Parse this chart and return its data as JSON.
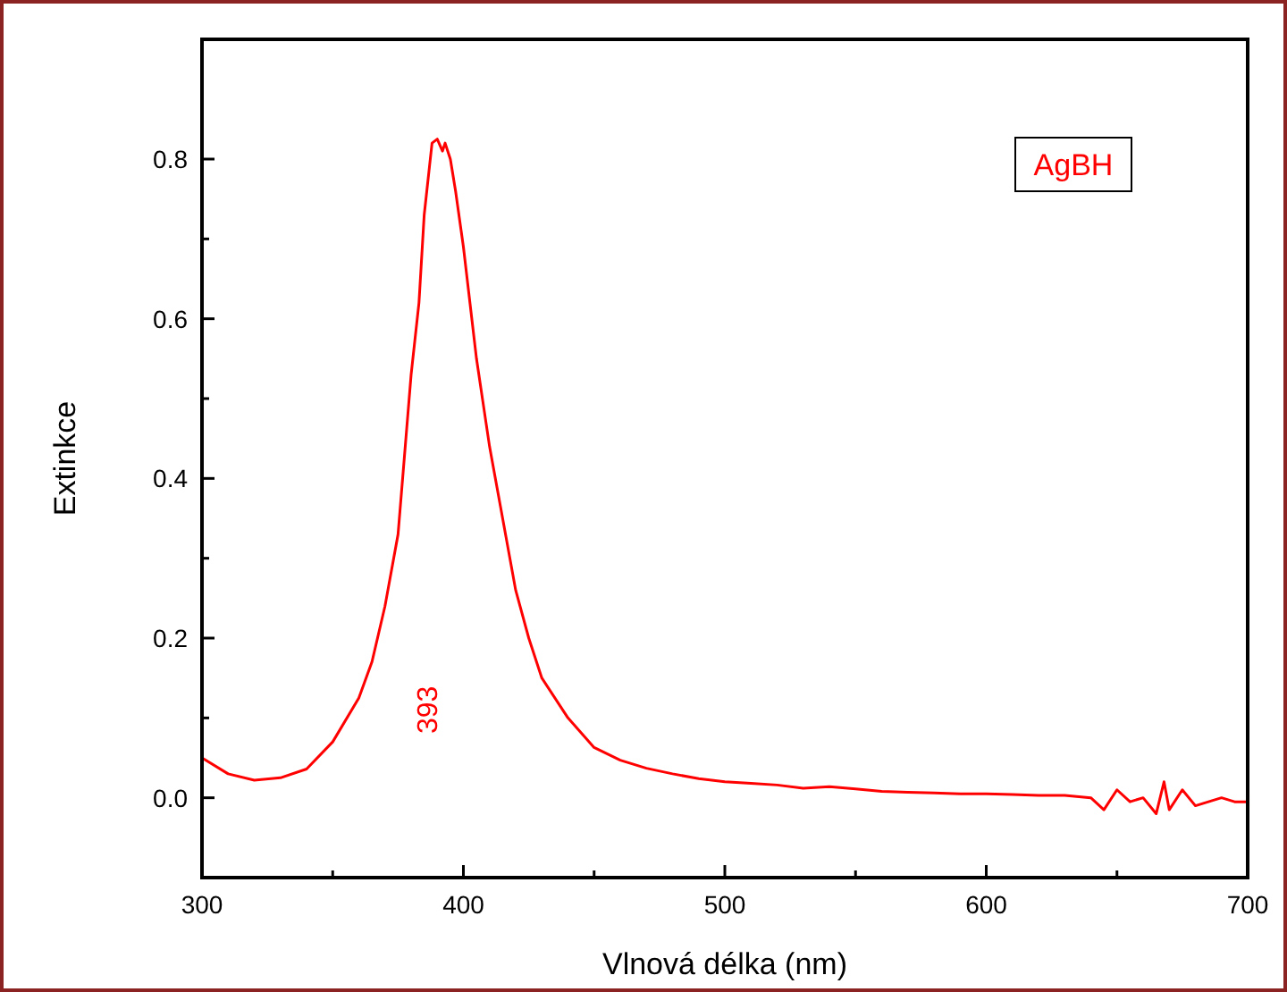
{
  "chart_data": {
    "type": "line",
    "xlabel": "Vlnová délka (nm)",
    "ylabel": "Extinkce",
    "x": [
      300,
      310,
      320,
      330,
      340,
      350,
      360,
      365,
      370,
      375,
      380,
      383,
      385,
      387,
      388,
      390,
      392,
      393,
      395,
      397,
      400,
      405,
      410,
      415,
      420,
      425,
      430,
      440,
      450,
      460,
      470,
      480,
      490,
      500,
      510,
      520,
      530,
      540,
      550,
      560,
      570,
      580,
      590,
      600,
      610,
      620,
      630,
      640,
      645,
      650,
      655,
      660,
      665,
      668,
      670,
      675,
      680,
      685,
      690,
      695,
      700
    ],
    "series": [
      {
        "name": "AgBH",
        "color": "#ff0000",
        "values": [
          0.05,
          0.03,
          0.022,
          0.025,
          0.036,
          0.07,
          0.125,
          0.17,
          0.24,
          0.33,
          0.53,
          0.62,
          0.73,
          0.79,
          0.82,
          0.825,
          0.81,
          0.82,
          0.8,
          0.76,
          0.69,
          0.55,
          0.44,
          0.35,
          0.26,
          0.2,
          0.15,
          0.1,
          0.063,
          0.047,
          0.037,
          0.03,
          0.024,
          0.02,
          0.018,
          0.016,
          0.012,
          0.014,
          0.011,
          0.008,
          0.007,
          0.006,
          0.005,
          0.005,
          0.004,
          0.003,
          0.003,
          0.0,
          -0.015,
          0.01,
          -0.005,
          0.0,
          -0.02,
          0.02,
          -0.015,
          0.01,
          -0.01,
          -0.005,
          0.0,
          -0.005,
          -0.005
        ]
      }
    ],
    "xlim": [
      300,
      700
    ],
    "ylim": [
      -0.1,
      0.95
    ],
    "xticks": [
      300,
      {
        "value": 350,
        "label": null
      },
      400,
      {
        "value": 450,
        "label": null
      },
      500,
      {
        "value": 550,
        "label": null
      },
      600,
      {
        "value": 650,
        "label": null
      },
      700
    ],
    "yticks": [
      {
        "value": 0,
        "label": "0.0"
      },
      {
        "value": 0.1,
        "label": null
      },
      0.2,
      {
        "value": 0.3,
        "label": null
      },
      0.4,
      {
        "value": 0.5,
        "label": null
      },
      0.6,
      {
        "value": 0.7,
        "label": null
      },
      0.8
    ],
    "annotations": [
      "393"
    ],
    "legend": "top right",
    "grid": false,
    "marker": "none",
    "line_style": "solid"
  }
}
